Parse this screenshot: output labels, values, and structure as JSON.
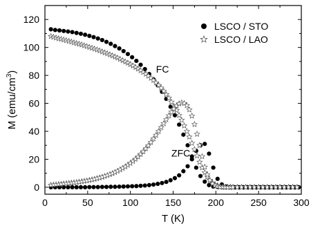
{
  "chart_data": {
    "type": "scatter",
    "xlabel": "T (K)",
    "ylabel_main": "M (emu/cm",
    "ylabel_sup": "3",
    "ylabel_tail": ")",
    "xlim": [
      0,
      300
    ],
    "ylim": [
      -5,
      130
    ],
    "xticks": [
      0,
      50,
      100,
      150,
      200,
      250,
      300
    ],
    "yticks": [
      0,
      20,
      40,
      60,
      80,
      100,
      120
    ],
    "grid": false,
    "legend_position": "top-right",
    "annotations": [
      {
        "text": "FC",
        "x": 130,
        "y": 82
      },
      {
        "text": "ZFC",
        "x": 148,
        "y": 22
      }
    ],
    "series": [
      {
        "name": "LSCO / STO",
        "marker": "filled-circle",
        "color": "#000000",
        "curves": [
          {
            "label": "FC",
            "x": [
              7,
              12,
              17,
              22,
              27,
              32,
              37,
              42,
              47,
              52,
              57,
              62,
              67,
              72,
              77,
              82,
              87,
              92,
              97,
              102,
              107,
              112,
              117,
              122,
              127,
              132,
              137,
              142,
              147,
              152,
              157,
              162,
              167,
              172,
              177,
              182,
              187,
              192,
              197,
              202,
              207,
              212,
              217,
              222,
              227,
              232,
              237,
              242,
              247,
              252,
              257,
              262,
              267,
              272,
              277,
              282,
              287,
              292,
              297
            ],
            "y": [
              113,
              112.5,
              112.2,
              111.8,
              111.4,
              111,
              110.4,
              109.8,
              109.1,
              108.3,
              107.4,
              106.4,
              105.3,
              104,
              102.6,
              101,
              99.3,
              97.4,
              95.3,
              93,
              90.4,
              87.6,
              84.5,
              81,
              77.2,
              73,
              68.3,
              63.2,
              57.6,
              51.5,
              44.8,
              37.6,
              30,
              22,
              14,
              8,
              4,
              1.5,
              0.5,
              0.2,
              0,
              0,
              0,
              0,
              0,
              0,
              0,
              0,
              0,
              0,
              0,
              0,
              0,
              0,
              0,
              0,
              0,
              0,
              0
            ]
          },
          {
            "label": "ZFC",
            "x": [
              7,
              12,
              17,
              22,
              27,
              32,
              37,
              42,
              47,
              52,
              57,
              62,
              67,
              72,
              77,
              82,
              87,
              92,
              97,
              102,
              107,
              112,
              117,
              122,
              127,
              132,
              137,
              142,
              147,
              152,
              157,
              162,
              167,
              172,
              177,
              182,
              187,
              192,
              197,
              202,
              207,
              212,
              217,
              222,
              227,
              232,
              237,
              242,
              247,
              252,
              257,
              262,
              267,
              272,
              277,
              282,
              287,
              292,
              297
            ],
            "y": [
              0,
              0,
              0,
              0,
              0,
              0,
              0,
              0,
              0,
              0.1,
              0.1,
              0.1,
              0.2,
              0.2,
              0.3,
              0.3,
              0.4,
              0.5,
              0.6,
              0.7,
              0.8,
              1,
              1.2,
              1.5,
              1.9,
              2.4,
              3,
              3.8,
              5,
              6.5,
              8.5,
              11.5,
              15,
              20,
              26,
              30,
              31,
              24,
              14,
              6,
              2,
              0.5,
              0.2,
              0,
              0,
              0,
              0,
              0,
              0,
              0,
              0,
              0,
              0,
              0,
              0,
              0,
              0,
              0,
              0
            ]
          }
        ]
      },
      {
        "name": "LSCO / LAO",
        "marker": "open-star",
        "color": "#555555",
        "curves": [
          {
            "label": "FC",
            "x": [
              7,
              10,
              13,
              16,
              19,
              22,
              25,
              28,
              31,
              34,
              37,
              40,
              43,
              46,
              49,
              52,
              55,
              58,
              61,
              64,
              67,
              70,
              73,
              76,
              79,
              82,
              85,
              88,
              91,
              94,
              97,
              100,
              103,
              106,
              109,
              112,
              115,
              118,
              121,
              124,
              127,
              130,
              133,
              136,
              139,
              142,
              145,
              148,
              151,
              154,
              157,
              160,
              163,
              166,
              169,
              172,
              175,
              178,
              181,
              184,
              187,
              190,
              193,
              196,
              199,
              202,
              205,
              208,
              211,
              214,
              217,
              220,
              225,
              230,
              235,
              240,
              245,
              250,
              255,
              260,
              265,
              270,
              275,
              280,
              285,
              290,
              295
            ],
            "y": [
              108,
              107.4,
              106.9,
              106.4,
              106,
              105.5,
              105,
              104.5,
              104,
              103.5,
              103,
              102.5,
              102,
              101.4,
              100.8,
              100.2,
              99.6,
              99,
              98.4,
              97.7,
              97,
              96.3,
              95.6,
              94.9,
              94.1,
              93.3,
              92.5,
              91.6,
              90.7,
              89.8,
              88.9,
              87.9,
              86.9,
              85.8,
              84.7,
              83.5,
              82.3,
              81,
              79.6,
              78.1,
              76.5,
              74.8,
              73,
              71,
              68.8,
              66.4,
              63.8,
              61,
              58,
              55,
              51.5,
              48,
              44,
              40,
              36,
              31.5,
              27,
              22.5,
              18,
              14,
              10.5,
              7.5,
              5,
              3.2,
              2,
              1.2,
              0.7,
              0.4,
              0.2,
              0.1,
              0,
              0,
              0,
              0,
              0,
              0,
              0,
              0,
              0,
              0,
              0,
              0,
              0,
              0,
              0,
              0,
              0
            ]
          },
          {
            "label": "ZFC",
            "x": [
              7,
              10,
              13,
              16,
              19,
              22,
              25,
              28,
              31,
              34,
              37,
              40,
              43,
              46,
              49,
              52,
              55,
              58,
              61,
              64,
              67,
              70,
              73,
              76,
              79,
              82,
              85,
              88,
              91,
              94,
              97,
              100,
              103,
              106,
              109,
              112,
              115,
              118,
              121,
              124,
              127,
              130,
              133,
              136,
              139,
              142,
              145,
              148,
              151,
              154,
              157,
              160,
              163,
              166,
              169,
              172,
              175,
              178,
              181,
              184,
              187,
              190,
              193,
              196,
              199,
              202,
              205,
              208,
              211,
              214,
              217,
              220,
              225,
              230,
              235,
              240,
              245,
              250,
              255,
              260,
              265,
              270,
              275,
              280,
              285,
              290,
              295
            ],
            "y": [
              1.5,
              1.7,
              1.9,
              2.1,
              2.3,
              2.5,
              2.7,
              2.9,
              3.1,
              3.3,
              3.5,
              3.8,
              4.1,
              4.4,
              4.7,
              5,
              5.4,
              5.8,
              6.3,
              6.8,
              7.3,
              7.9,
              8.5,
              9.2,
              9.9,
              10.7,
              11.6,
              12.6,
              13.6,
              14.7,
              15.9,
              17.2,
              18.6,
              20.1,
              21.8,
              23.6,
              25.5,
              27.6,
              29.8,
              32.2,
              34.7,
              37.3,
              40,
              42.8,
              45.6,
              48.4,
              51.2,
              53.8,
              56.2,
              58.2,
              59.8,
              60.5,
              60,
              58.5,
              55.5,
              51,
              45,
              38,
              30,
              22,
              14.5,
              9,
              5,
              2.5,
              1.2,
              0.5,
              0.2,
              0.1,
              0,
              0,
              0,
              0,
              0,
              0,
              0,
              0,
              0,
              0,
              0,
              0,
              0,
              0,
              0,
              0,
              0,
              0,
              0
            ]
          }
        ]
      }
    ]
  }
}
